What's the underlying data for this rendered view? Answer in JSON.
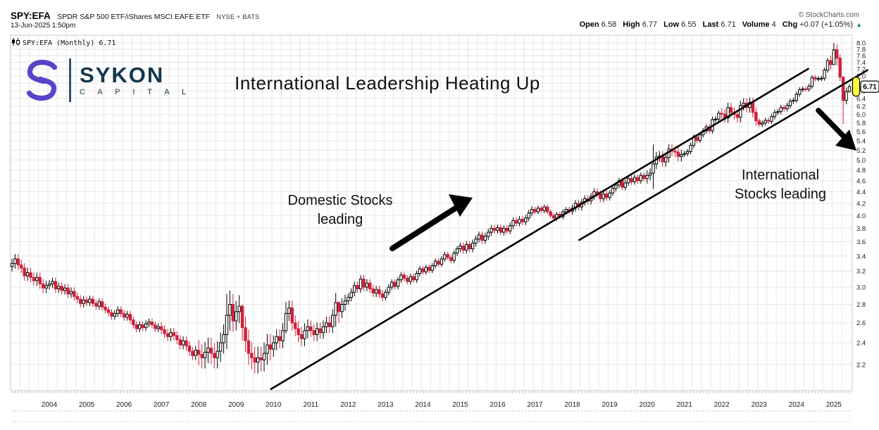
{
  "header": {
    "symbol": "SPY:EFA",
    "description": "SPDR S&P 500 ETF/iShares MSCI EAFE ETF",
    "exchange": "NYSE + BATS",
    "datetime": "13-Jun-2025 1:50pm",
    "credit": "© StockCharts.com",
    "quote_fields": [
      {
        "label": "Open",
        "value": "6.58"
      },
      {
        "label": "High",
        "value": "6.77"
      },
      {
        "label": "Low",
        "value": "6.55"
      },
      {
        "label": "Last",
        "value": "6.71"
      },
      {
        "label": "Volume",
        "value": "4"
      },
      {
        "label": "Chg",
        "value": "+0.07 (+1.05%)"
      }
    ],
    "change_direction": "▲"
  },
  "logo": {
    "name": "SYKON",
    "sub": "C A P I T A L"
  },
  "legend": "SPY:EFA (Monthly) 6.71",
  "title": "International Leadership Heating Up",
  "annotations": {
    "domestic_line1": "Domestic Stocks",
    "domestic_line2": "leading",
    "international_line1": "International",
    "international_line2": "Stocks leading"
  },
  "price_tag": "6.71",
  "chart_data": {
    "type": "candlestick",
    "symbol": "SPY:EFA",
    "timeframe": "Monthly",
    "x_start": "2003-01",
    "x_end": "2025-06",
    "x_year_labels": [
      2004,
      2005,
      2006,
      2007,
      2008,
      2009,
      2010,
      2011,
      2012,
      2013,
      2014,
      2015,
      2016,
      2017,
      2018,
      2019,
      2020,
      2021,
      2022,
      2023,
      2024,
      2025
    ],
    "y_axis": {
      "min": 2.2,
      "max": 8.0,
      "step": 0.2,
      "scale": "log",
      "side": "right"
    },
    "grid": true,
    "last_price": 6.71,
    "first_open": 3.26,
    "monthly_closes_by_year": {
      "2003": [
        3.3,
        3.36,
        3.28,
        3.24,
        3.14,
        3.18,
        3.12,
        3.08,
        3.12,
        3.04,
        2.99,
        3.02
      ],
      "2004": [
        3.04,
        3.07,
        2.98,
        3.01,
        2.96,
        2.99,
        2.92,
        2.95,
        2.89,
        2.86,
        2.81,
        2.85
      ],
      "2005": [
        2.82,
        2.86,
        2.81,
        2.78,
        2.83,
        2.77,
        2.74,
        2.71,
        2.67,
        2.7,
        2.74,
        2.7
      ],
      "2006": [
        2.66,
        2.69,
        2.63,
        2.58,
        2.54,
        2.58,
        2.55,
        2.59,
        2.61,
        2.58,
        2.54,
        2.56
      ],
      "2007": [
        2.53,
        2.49,
        2.46,
        2.5,
        2.47,
        2.43,
        2.38,
        2.42,
        2.37,
        2.32,
        2.28,
        2.33
      ],
      "2008": [
        2.29,
        2.26,
        2.31,
        2.35,
        2.3,
        2.26,
        2.32,
        2.4,
        2.48,
        2.68,
        2.8,
        2.62
      ],
      "2009": [
        2.72,
        2.78,
        2.55,
        2.42,
        2.3,
        2.26,
        2.22,
        2.26,
        2.24,
        2.3,
        2.38,
        2.34
      ],
      "2010": [
        2.4,
        2.46,
        2.42,
        2.52,
        2.7,
        2.76,
        2.6,
        2.54,
        2.48,
        2.44,
        2.52,
        2.56
      ],
      "2011": [
        2.52,
        2.48,
        2.54,
        2.5,
        2.56,
        2.6,
        2.56,
        2.68,
        2.82,
        2.72,
        2.8,
        2.84
      ],
      "2012": [
        2.88,
        2.94,
        3.02,
        2.98,
        3.1,
        3.0,
        3.05,
        2.98,
        2.93,
        2.97,
        2.92,
        2.88
      ],
      "2013": [
        2.94,
        3.0,
        3.06,
        3.01,
        3.09,
        3.15,
        3.11,
        3.07,
        3.13,
        3.09,
        3.17,
        3.23
      ],
      "2014": [
        3.19,
        3.25,
        3.21,
        3.27,
        3.33,
        3.29,
        3.36,
        3.42,
        3.38,
        3.34,
        3.44,
        3.5
      ],
      "2015": [
        3.54,
        3.48,
        3.56,
        3.5,
        3.58,
        3.64,
        3.7,
        3.62,
        3.68,
        3.74,
        3.8,
        3.77
      ],
      "2016": [
        3.81,
        3.74,
        3.8,
        3.76,
        3.84,
        3.92,
        3.88,
        3.94,
        3.9,
        3.96,
        4.04,
        4.1
      ],
      "2017": [
        4.06,
        4.12,
        4.08,
        4.14,
        4.06,
        4.0,
        3.96,
        4.02,
        3.98,
        4.06,
        4.1,
        4.07
      ],
      "2018": [
        4.12,
        4.2,
        4.14,
        4.22,
        4.28,
        4.24,
        4.32,
        4.4,
        4.36,
        4.28,
        4.36,
        4.3
      ],
      "2019": [
        4.38,
        4.46,
        4.52,
        4.6,
        4.48,
        4.56,
        4.64,
        4.58,
        4.66,
        4.6,
        4.7,
        4.64
      ],
      "2020": [
        4.7,
        4.74,
        4.92,
        5.06,
        5.08,
        4.96,
        5.05,
        5.22,
        5.18,
        5.16,
        5.07,
        5.11
      ],
      "2021": [
        5.13,
        5.17,
        5.3,
        5.48,
        5.41,
        5.53,
        5.62,
        5.71,
        5.62,
        5.88,
        5.89,
        6.03
      ],
      "2022": [
        6.01,
        5.92,
        6.17,
        6.05,
        6.0,
        5.93,
        6.22,
        6.28,
        6.17,
        6.3,
        6.05,
        5.85
      ],
      "2023": [
        5.77,
        5.8,
        5.86,
        5.84,
        5.95,
        6.05,
        6.07,
        6.17,
        6.14,
        6.22,
        6.33,
        6.35
      ],
      "2024": [
        6.51,
        6.63,
        6.65,
        6.64,
        6.72,
        6.96,
        6.92,
        6.93,
        6.94,
        7.17,
        7.45,
        7.33
      ],
      "2025": [
        7.78,
        7.52,
        6.97,
        6.35,
        6.58,
        6.71
      ]
    },
    "wick_pct_by_year": {
      "2003": 0.02,
      "2004": 0.016,
      "2005": 0.014,
      "2006": 0.014,
      "2007": 0.018,
      "2008": 0.042,
      "2009": 0.045,
      "2010": 0.03,
      "2011": 0.025,
      "2012": 0.016,
      "2013": 0.012,
      "2014": 0.011,
      "2015": 0.014,
      "2016": 0.013,
      "2017": 0.01,
      "2018": 0.014,
      "2019": 0.012,
      "2020": 0.02,
      "2021": 0.011,
      "2022": 0.02,
      "2023": 0.011,
      "2024": 0.01,
      "2025": 0.016
    },
    "wick_overrides": {
      "2008-10": {
        "h": 2.92,
        "l": 2.34
      },
      "2008-11": {
        "h": 2.96,
        "l": 2.52
      },
      "2009-01": {
        "h": 2.84,
        "l": 2.52
      },
      "2009-03": {
        "h": 2.8,
        "l": 2.42
      },
      "2010-05": {
        "h": 2.83,
        "l": 2.49
      },
      "2011-09": {
        "h": 2.93,
        "l": 2.56
      },
      "2011-10": {
        "h": 2.84,
        "l": 2.6
      },
      "2020-03": {
        "h": 5.32,
        "l": 4.45
      },
      "2024-12": {
        "h": 7.6,
        "l": 7.18
      },
      "2025-01": {
        "h": 7.99,
        "l": 7.42
      },
      "2025-02": {
        "h": 7.95,
        "l": 7.3
      },
      "2025-04": {
        "h": 7.0,
        "l": 5.78
      },
      "2025-06": {
        "o": 6.58,
        "h": 6.77,
        "l": 6.55
      }
    },
    "trendlines": [
      {
        "start_month": "2009-12",
        "start_price": 1.99,
        "end_month": "2024-05",
        "end_price": 7.22
      },
      {
        "start_month": "2018-03",
        "start_price": 3.62,
        "end_month": "2025-12",
        "end_price": 7.18
      }
    ],
    "colors": {
      "up": "#000000",
      "down": "#d0213a",
      "grid": "#e8e6e6",
      "frame": "#c9c9c9",
      "last_marker": "#ffff42",
      "axis_text": "#222222"
    }
  }
}
